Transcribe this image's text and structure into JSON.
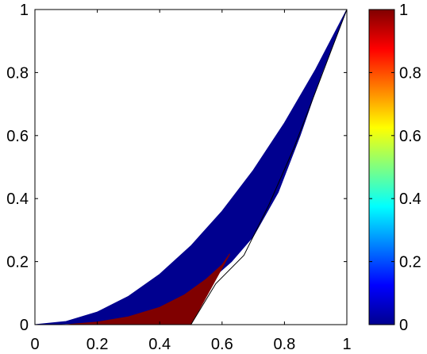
{
  "chart_data": {
    "type": "area",
    "title": "",
    "xlabel": "",
    "ylabel": "",
    "xlim": [
      0,
      1
    ],
    "ylim": [
      0,
      1
    ],
    "x_ticks": [
      "0",
      "0.2",
      "0.4",
      "0.6",
      "0.8",
      "1"
    ],
    "y_ticks": [
      "0",
      "0.2",
      "0.4",
      "0.6",
      "0.8",
      "1"
    ],
    "grid": false,
    "colormap": "jet",
    "colorbar": {
      "range": [
        0,
        1
      ],
      "ticks": [
        "0",
        "0.2",
        "0.4",
        "0.6",
        "0.8",
        "1"
      ]
    },
    "regions": [
      {
        "level": 0,
        "color": "#00008f",
        "boundary": [
          [
            0.0,
            0.0
          ],
          [
            0.1,
            0.01
          ],
          [
            0.2,
            0.04
          ],
          [
            0.3,
            0.09
          ],
          [
            0.4,
            0.16
          ],
          [
            0.5,
            0.25
          ],
          [
            0.6,
            0.36
          ],
          [
            0.7,
            0.49
          ],
          [
            0.8,
            0.64
          ],
          [
            0.9,
            0.81
          ],
          [
            1.0,
            1.0
          ],
          [
            0.92,
            0.8
          ],
          [
            0.85,
            0.6
          ],
          [
            0.78,
            0.42
          ],
          [
            0.7,
            0.28
          ],
          [
            0.63,
            0.2
          ],
          [
            0.55,
            0.13
          ],
          [
            0.45,
            0.07
          ],
          [
            0.35,
            0.03
          ],
          [
            0.2,
            0.006
          ],
          [
            0.0,
            0.0
          ]
        ]
      },
      {
        "level": 1,
        "color": "#800000",
        "boundary": [
          [
            0.1,
            0.0
          ],
          [
            0.2,
            0.008
          ],
          [
            0.3,
            0.025
          ],
          [
            0.4,
            0.055
          ],
          [
            0.48,
            0.095
          ],
          [
            0.55,
            0.145
          ],
          [
            0.6,
            0.19
          ],
          [
            0.625,
            0.225
          ],
          [
            0.5,
            0.0
          ],
          [
            0.1,
            0.0
          ]
        ]
      }
    ],
    "boundary_line": [
      [
        0.5,
        0.0
      ],
      [
        0.58,
        0.13
      ],
      [
        0.67,
        0.22
      ],
      [
        0.75,
        0.38
      ],
      [
        0.83,
        0.56
      ],
      [
        0.9,
        0.74
      ],
      [
        0.95,
        0.87
      ],
      [
        1.0,
        1.0
      ]
    ]
  }
}
